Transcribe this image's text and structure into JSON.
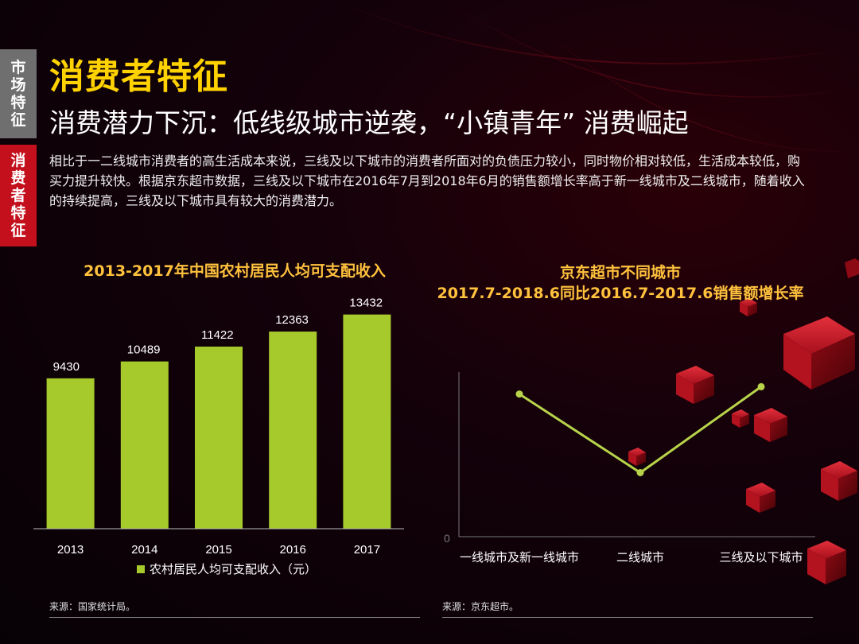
{
  "sidebar": {
    "tabs": [
      {
        "label": "市场特征"
      },
      {
        "label": "消费者特征"
      }
    ]
  },
  "header": {
    "title": "消费者特征",
    "subtitle": "消费潜力下沉：低线级城市逆袭，“小镇青年” 消费崛起"
  },
  "description": "相比于一二线城市消费者的高生活成本来说，三线及以下城市的消费者所面对的负债压力较小，同时物价相对较低，生活成本较低，购买力提升较快。根据京东超市数据，三线及以下城市在2016年7月到2018年6月的销售额增长率高于新一线城市及二线城市，随着收入的持续提高，三线及以下城市具有较大的消费潜力。",
  "colors": {
    "bar": "#a6c92c",
    "line": "#b8d44a",
    "title_accent": "#ffd200",
    "tab_active": "#c4101c"
  },
  "chart_data": [
    {
      "type": "bar",
      "title": "2013-2017年中国农村居民人均可支配收入",
      "categories": [
        "2013",
        "2014",
        "2015",
        "2016",
        "2017"
      ],
      "series": [
        {
          "name": "农村居民人均可支配收入（元）",
          "values": [
            9430,
            10489,
            11422,
            12363,
            13432
          ]
        }
      ],
      "ylim": [
        0,
        14000
      ],
      "legend": "bottom",
      "source": "来源：国家统计局。"
    },
    {
      "type": "line",
      "title_lines": [
        "京东超市不同城市",
        "2017.7-2018.6同比2016.7-2017.6销售额增长率"
      ],
      "categories": [
        "一线城市及新一线城市",
        "二线城市",
        "三线及以下城市"
      ],
      "series": [
        {
          "values": [
            0.78,
            0.35,
            0.82
          ]
        }
      ],
      "ylim": [
        0,
        1
      ],
      "y_tick_label": "0",
      "source": "来源：京东超市。"
    }
  ]
}
